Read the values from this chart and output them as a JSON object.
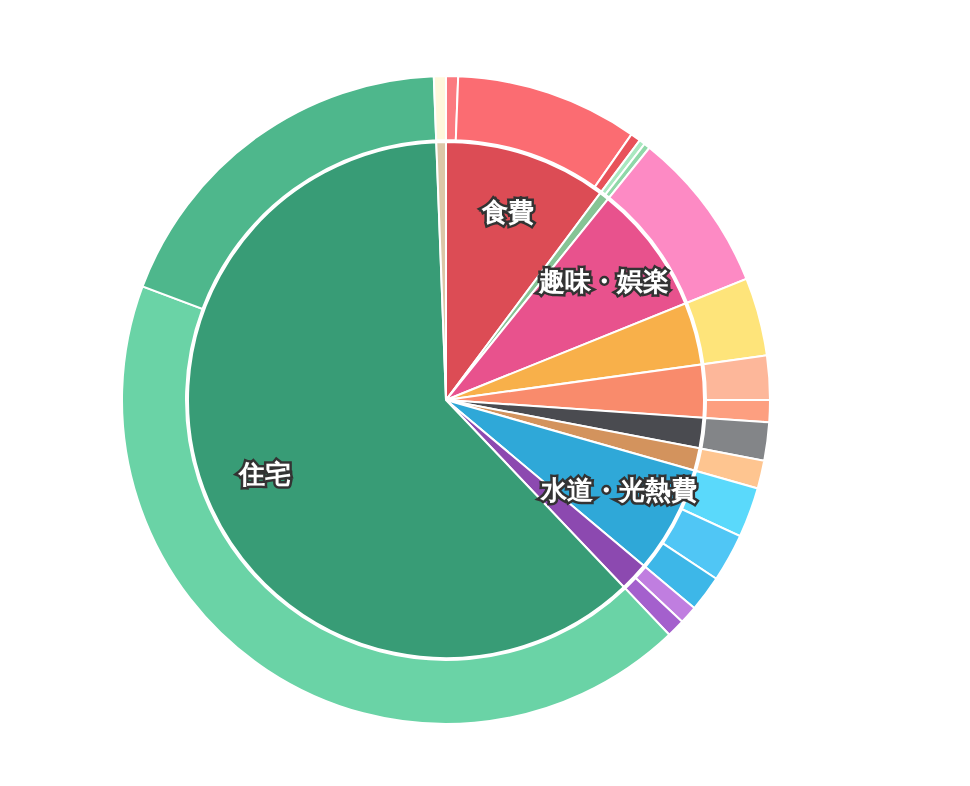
{
  "chart_data": [
    {
      "type": "pie",
      "categories": [
        "食費",
        null,
        "趣味・娯楽",
        null,
        null,
        null,
        null,
        "水道・光熱費",
        null,
        "住宅",
        null
      ],
      "values": [
        10.2,
        0.6,
        8.1,
        3.9,
        3.3,
        1.9,
        1.4,
        6.7,
        1.8,
        61.5,
        0.6
      ],
      "colors": [
        "#dc4c55",
        "#86c495",
        "#e8528d",
        "#f8b04a",
        "#f98b6c",
        "#4a4b50",
        "#d3935d",
        "#2fa8d8",
        "#8c49b0",
        "#389c76",
        "#dcc7a8"
      ]
    },
    {
      "type": "donut",
      "categories": [
        null,
        null,
        null,
        null,
        null,
        null,
        null,
        null,
        null,
        null,
        null,
        null,
        null,
        null,
        null,
        null,
        null,
        null,
        null
      ],
      "values": [
        0.6,
        9.1,
        0.5,
        0.3,
        0.3,
        8.1,
        3.9,
        2.2,
        1.1,
        1.9,
        1.4,
        2.5,
        2.4,
        1.8,
        0.9,
        0.9,
        42.8,
        18.7,
        0.6
      ],
      "colors": [
        "#fb7a80",
        "#fb6c72",
        "#e8525a",
        "#a9e8c0",
        "#8fd8a8",
        "#fd8ac4",
        "#fee47a",
        "#fdb79a",
        "#fd9f80",
        "#838588",
        "#fec590",
        "#5ad9fb",
        "#50c6f5",
        "#3db7e8",
        "#c07ee0",
        "#a460cd",
        "#6ad3a6",
        "#4eb78c",
        "#fff8dc"
      ]
    }
  ]
}
